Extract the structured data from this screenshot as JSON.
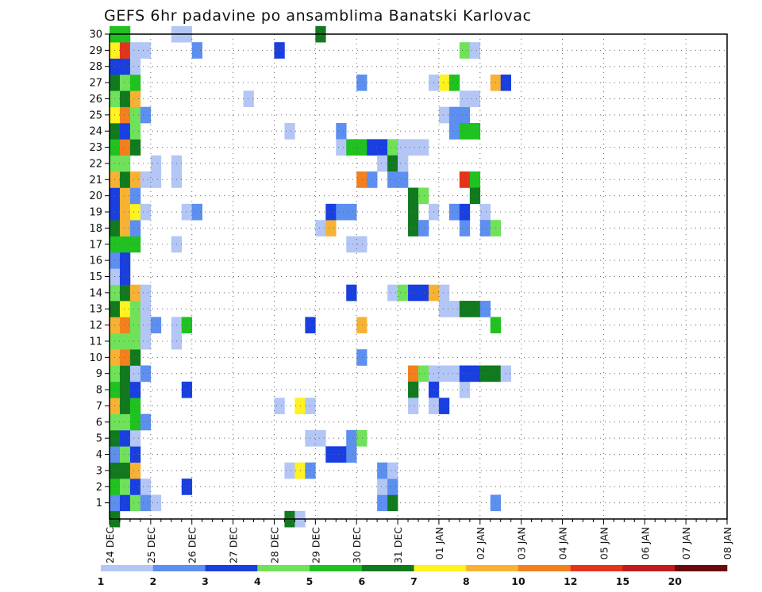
{
  "chart_data": {
    "type": "heatmap",
    "title": "GEFS 6hr padavine po ansamblima Banatski Karlovac",
    "xlabel": "",
    "ylabel": "",
    "x_ticks": [
      "24 DEC",
      "25 DEC",
      "26 DEC",
      "27 DEC",
      "28 DEC",
      "29 DEC",
      "30 DEC",
      "31 DEC",
      "01 JAN",
      "02 JAN",
      "03 JAN",
      "04 JAN",
      "05 JAN",
      "06 JAN",
      "07 JAN",
      "08 JAN"
    ],
    "y_ticks": [
      "1",
      "2",
      "3",
      "4",
      "5",
      "6",
      "7",
      "8",
      "9",
      "10",
      "11",
      "12",
      "13",
      "14",
      "15",
      "16",
      "17",
      "18",
      "19",
      "20",
      "21",
      "22",
      "23",
      "24",
      "25",
      "26",
      "27",
      "28",
      "29",
      "30"
    ],
    "x_range_steps": [
      0,
      60
    ],
    "y_range": [
      0,
      30
    ],
    "grid": true,
    "legend": {
      "placement": "bottom",
      "labels": [
        "1",
        "2",
        "3",
        "4",
        "5",
        "6",
        "7",
        "8",
        "10",
        "12",
        "15",
        "20"
      ],
      "colors": [
        "#b3c6f5",
        "#5c8ff0",
        "#1a3fe0",
        "#6fe25a",
        "#1fc21f",
        "#117a1e",
        "#fff21e",
        "#f8b233",
        "#f37f1d",
        "#e5331a",
        "#c21b1b",
        "#6a0a0a"
      ]
    },
    "cells": [
      {
        "s": 0,
        "m": 0,
        "c": 6
      },
      {
        "s": 0,
        "m": 1,
        "c": 2
      },
      {
        "s": 1,
        "m": 1,
        "c": 3
      },
      {
        "s": 2,
        "m": 1,
        "c": 4
      },
      {
        "s": 3,
        "m": 1,
        "c": 2
      },
      {
        "s": 4,
        "m": 1,
        "c": 1
      },
      {
        "s": 0,
        "m": 2,
        "c": 5
      },
      {
        "s": 1,
        "m": 2,
        "c": 4
      },
      {
        "s": 2,
        "m": 2,
        "c": 3
      },
      {
        "s": 3,
        "m": 2,
        "c": 1
      },
      {
        "s": 0,
        "m": 3,
        "c": 6
      },
      {
        "s": 1,
        "m": 3,
        "c": 6
      },
      {
        "s": 2,
        "m": 3,
        "c": 8
      },
      {
        "s": 0,
        "m": 4,
        "c": 2
      },
      {
        "s": 1,
        "m": 4,
        "c": 4
      },
      {
        "s": 2,
        "m": 4,
        "c": 3
      },
      {
        "s": 0,
        "m": 5,
        "c": 6
      },
      {
        "s": 1,
        "m": 5,
        "c": 3
      },
      {
        "s": 2,
        "m": 5,
        "c": 1
      },
      {
        "s": 0,
        "m": 6,
        "c": 4
      },
      {
        "s": 1,
        "m": 6,
        "c": 4
      },
      {
        "s": 2,
        "m": 6,
        "c": 5
      },
      {
        "s": 3,
        "m": 6,
        "c": 2
      },
      {
        "s": 0,
        "m": 7,
        "c": 8
      },
      {
        "s": 1,
        "m": 7,
        "c": 6
      },
      {
        "s": 2,
        "m": 7,
        "c": 5
      },
      {
        "s": 0,
        "m": 8,
        "c": 5
      },
      {
        "s": 1,
        "m": 8,
        "c": 6
      },
      {
        "s": 2,
        "m": 8,
        "c": 3
      },
      {
        "s": 0,
        "m": 9,
        "c": 4
      },
      {
        "s": 1,
        "m": 9,
        "c": 6
      },
      {
        "s": 2,
        "m": 9,
        "c": 1
      },
      {
        "s": 3,
        "m": 9,
        "c": 2
      },
      {
        "s": 0,
        "m": 10,
        "c": 8
      },
      {
        "s": 1,
        "m": 10,
        "c": 9
      },
      {
        "s": 2,
        "m": 10,
        "c": 6
      },
      {
        "s": 0,
        "m": 11,
        "c": 4
      },
      {
        "s": 1,
        "m": 11,
        "c": 4
      },
      {
        "s": 2,
        "m": 11,
        "c": 4
      },
      {
        "s": 3,
        "m": 11,
        "c": 1
      },
      {
        "s": 0,
        "m": 12,
        "c": 8
      },
      {
        "s": 1,
        "m": 12,
        "c": 9
      },
      {
        "s": 2,
        "m": 12,
        "c": 4
      },
      {
        "s": 3,
        "m": 12,
        "c": 1
      },
      {
        "s": 4,
        "m": 12,
        "c": 2
      },
      {
        "s": 0,
        "m": 13,
        "c": 6
      },
      {
        "s": 1,
        "m": 13,
        "c": 7
      },
      {
        "s": 2,
        "m": 13,
        "c": 4
      },
      {
        "s": 3,
        "m": 13,
        "c": 1
      },
      {
        "s": 0,
        "m": 14,
        "c": 4
      },
      {
        "s": 1,
        "m": 14,
        "c": 6
      },
      {
        "s": 2,
        "m": 14,
        "c": 8
      },
      {
        "s": 3,
        "m": 14,
        "c": 1
      },
      {
        "s": 0,
        "m": 15,
        "c": 1
      },
      {
        "s": 1,
        "m": 15,
        "c": 3
      },
      {
        "s": 0,
        "m": 16,
        "c": 2
      },
      {
        "s": 1,
        "m": 16,
        "c": 3
      },
      {
        "s": 0,
        "m": 17,
        "c": 5
      },
      {
        "s": 1,
        "m": 17,
        "c": 5
      },
      {
        "s": 2,
        "m": 17,
        "c": 5
      },
      {
        "s": 0,
        "m": 18,
        "c": 6
      },
      {
        "s": 1,
        "m": 18,
        "c": 8
      },
      {
        "s": 2,
        "m": 18,
        "c": 2
      },
      {
        "s": 0,
        "m": 19,
        "c": 3
      },
      {
        "s": 1,
        "m": 19,
        "c": 8
      },
      {
        "s": 2,
        "m": 19,
        "c": 7
      },
      {
        "s": 3,
        "m": 19,
        "c": 1
      },
      {
        "s": 0,
        "m": 20,
        "c": 3
      },
      {
        "s": 1,
        "m": 20,
        "c": 8
      },
      {
        "s": 2,
        "m": 20,
        "c": 2
      },
      {
        "s": 0,
        "m": 21,
        "c": 8
      },
      {
        "s": 1,
        "m": 21,
        "c": 6
      },
      {
        "s": 2,
        "m": 21,
        "c": 8
      },
      {
        "s": 3,
        "m": 21,
        "c": 1
      },
      {
        "s": 4,
        "m": 21,
        "c": 1
      },
      {
        "s": 0,
        "m": 22,
        "c": 4
      },
      {
        "s": 1,
        "m": 22,
        "c": 4
      },
      {
        "s": 4,
        "m": 22,
        "c": 1
      },
      {
        "s": 0,
        "m": 23,
        "c": 5
      },
      {
        "s": 1,
        "m": 23,
        "c": 9
      },
      {
        "s": 2,
        "m": 23,
        "c": 6
      },
      {
        "s": 0,
        "m": 24,
        "c": 6
      },
      {
        "s": 1,
        "m": 24,
        "c": 3
      },
      {
        "s": 2,
        "m": 24,
        "c": 4
      },
      {
        "s": 0,
        "m": 25,
        "c": 7
      },
      {
        "s": 1,
        "m": 25,
        "c": 9
      },
      {
        "s": 2,
        "m": 25,
        "c": 4
      },
      {
        "s": 3,
        "m": 25,
        "c": 2
      },
      {
        "s": 0,
        "m": 26,
        "c": 4
      },
      {
        "s": 1,
        "m": 26,
        "c": 6
      },
      {
        "s": 2,
        "m": 26,
        "c": 8
      },
      {
        "s": 0,
        "m": 27,
        "c": 6
      },
      {
        "s": 1,
        "m": 27,
        "c": 4
      },
      {
        "s": 2,
        "m": 27,
        "c": 5
      },
      {
        "s": 0,
        "m": 28,
        "c": 3
      },
      {
        "s": 1,
        "m": 28,
        "c": 3
      },
      {
        "s": 2,
        "m": 28,
        "c": 1
      },
      {
        "s": 0,
        "m": 29,
        "c": 7
      },
      {
        "s": 1,
        "m": 29,
        "c": 10
      },
      {
        "s": 2,
        "m": 29,
        "c": 1
      },
      {
        "s": 3,
        "m": 29,
        "c": 1
      },
      {
        "s": 0,
        "m": 30,
        "c": 5
      },
      {
        "s": 1,
        "m": 30,
        "c": 5
      },
      {
        "s": 6,
        "m": 30,
        "c": 1
      },
      {
        "s": 7,
        "m": 30,
        "c": 1
      },
      {
        "s": 6,
        "m": 21,
        "c": 1
      },
      {
        "s": 6,
        "m": 22,
        "c": 1
      },
      {
        "s": 6,
        "m": 17,
        "c": 1
      },
      {
        "s": 6,
        "m": 12,
        "c": 1
      },
      {
        "s": 7,
        "m": 12,
        "c": 5
      },
      {
        "s": 6,
        "m": 11,
        "c": 1
      },
      {
        "s": 7,
        "m": 19,
        "c": 1
      },
      {
        "s": 8,
        "m": 19,
        "c": 2
      },
      {
        "s": 8,
        "m": 29,
        "c": 2
      },
      {
        "s": 7,
        "m": 8,
        "c": 3
      },
      {
        "s": 7,
        "m": 2,
        "c": 3
      },
      {
        "s": 13,
        "m": 26,
        "c": 1
      },
      {
        "s": 16,
        "m": 29,
        "c": 3
      },
      {
        "s": 16,
        "m": 7,
        "c": 1
      },
      {
        "s": 17,
        "m": 24,
        "c": 1
      },
      {
        "s": 17,
        "m": 0,
        "c": 6
      },
      {
        "s": 18,
        "m": 0,
        "c": 1
      },
      {
        "s": 17,
        "m": 3,
        "c": 1
      },
      {
        "s": 18,
        "m": 3,
        "c": 7
      },
      {
        "s": 19,
        "m": 3,
        "c": 2
      },
      {
        "s": 18,
        "m": 7,
        "c": 7
      },
      {
        "s": 19,
        "m": 7,
        "c": 1
      },
      {
        "s": 19,
        "m": 5,
        "c": 1
      },
      {
        "s": 20,
        "m": 5,
        "c": 1
      },
      {
        "s": 19,
        "m": 12,
        "c": 3
      },
      {
        "s": 20,
        "m": 30,
        "c": 6
      },
      {
        "s": 20,
        "m": 18,
        "c": 1
      },
      {
        "s": 21,
        "m": 18,
        "c": 8
      },
      {
        "s": 21,
        "m": 19,
        "c": 3
      },
      {
        "s": 22,
        "m": 19,
        "c": 2
      },
      {
        "s": 23,
        "m": 19,
        "c": 2
      },
      {
        "s": 21,
        "m": 4,
        "c": 3
      },
      {
        "s": 22,
        "m": 4,
        "c": 3
      },
      {
        "s": 23,
        "m": 4,
        "c": 2
      },
      {
        "s": 23,
        "m": 5,
        "c": 2
      },
      {
        "s": 24,
        "m": 5,
        "c": 4
      },
      {
        "s": 23,
        "m": 14,
        "c": 3
      },
      {
        "s": 22,
        "m": 24,
        "c": 2
      },
      {
        "s": 22,
        "m": 23,
        "c": 1
      },
      {
        "s": 23,
        "m": 23,
        "c": 5
      },
      {
        "s": 24,
        "m": 23,
        "c": 5
      },
      {
        "s": 25,
        "m": 23,
        "c": 3
      },
      {
        "s": 26,
        "m": 23,
        "c": 3
      },
      {
        "s": 27,
        "m": 23,
        "c": 4
      },
      {
        "s": 28,
        "m": 23,
        "c": 1
      },
      {
        "s": 29,
        "m": 23,
        "c": 1
      },
      {
        "s": 30,
        "m": 23,
        "c": 1
      },
      {
        "s": 23,
        "m": 17,
        "c": 1
      },
      {
        "s": 24,
        "m": 17,
        "c": 1
      },
      {
        "s": 24,
        "m": 27,
        "c": 2
      },
      {
        "s": 24,
        "m": 21,
        "c": 9
      },
      {
        "s": 25,
        "m": 21,
        "c": 2
      },
      {
        "s": 24,
        "m": 12,
        "c": 8
      },
      {
        "s": 24,
        "m": 10,
        "c": 2
      },
      {
        "s": 26,
        "m": 22,
        "c": 1
      },
      {
        "s": 27,
        "m": 22,
        "c": 6
      },
      {
        "s": 26,
        "m": 1,
        "c": 2
      },
      {
        "s": 27,
        "m": 1,
        "c": 6
      },
      {
        "s": 26,
        "m": 2,
        "c": 1
      },
      {
        "s": 27,
        "m": 2,
        "c": 2
      },
      {
        "s": 26,
        "m": 3,
        "c": 2
      },
      {
        "s": 27,
        "m": 3,
        "c": 1
      },
      {
        "s": 27,
        "m": 21,
        "c": 2
      },
      {
        "s": 28,
        "m": 21,
        "c": 2
      },
      {
        "s": 28,
        "m": 22,
        "c": 1
      },
      {
        "s": 27,
        "m": 14,
        "c": 1
      },
      {
        "s": 28,
        "m": 14,
        "c": 4
      },
      {
        "s": 29,
        "m": 14,
        "c": 3
      },
      {
        "s": 30,
        "m": 14,
        "c": 3
      },
      {
        "s": 31,
        "m": 14,
        "c": 8
      },
      {
        "s": 32,
        "m": 14,
        "c": 1
      },
      {
        "s": 29,
        "m": 20,
        "c": 6
      },
      {
        "s": 30,
        "m": 20,
        "c": 4
      },
      {
        "s": 29,
        "m": 19,
        "c": 6
      },
      {
        "s": 31,
        "m": 19,
        "c": 1
      },
      {
        "s": 33,
        "m": 19,
        "c": 2
      },
      {
        "s": 29,
        "m": 18,
        "c": 6
      },
      {
        "s": 30,
        "m": 18,
        "c": 2
      },
      {
        "s": 29,
        "m": 9,
        "c": 9
      },
      {
        "s": 30,
        "m": 9,
        "c": 4
      },
      {
        "s": 31,
        "m": 9,
        "c": 1
      },
      {
        "s": 32,
        "m": 9,
        "c": 1
      },
      {
        "s": 29,
        "m": 8,
        "c": 6
      },
      {
        "s": 31,
        "m": 8,
        "c": 3
      },
      {
        "s": 29,
        "m": 7,
        "c": 1
      },
      {
        "s": 31,
        "m": 7,
        "c": 1
      },
      {
        "s": 32,
        "m": 7,
        "c": 3
      },
      {
        "s": 31,
        "m": 27,
        "c": 1
      },
      {
        "s": 32,
        "m": 27,
        "c": 7
      },
      {
        "s": 33,
        "m": 27,
        "c": 5
      },
      {
        "s": 32,
        "m": 25,
        "c": 1
      },
      {
        "s": 33,
        "m": 25,
        "c": 2
      },
      {
        "s": 34,
        "m": 25,
        "c": 2
      },
      {
        "s": 33,
        "m": 24,
        "c": 2
      },
      {
        "s": 32,
        "m": 13,
        "c": 1
      },
      {
        "s": 33,
        "m": 13,
        "c": 1
      },
      {
        "s": 34,
        "m": 13,
        "c": 6
      },
      {
        "s": 35,
        "m": 13,
        "c": 6
      },
      {
        "s": 36,
        "m": 13,
        "c": 2
      },
      {
        "s": 34,
        "m": 29,
        "c": 4
      },
      {
        "s": 35,
        "m": 29,
        "c": 1
      },
      {
        "s": 34,
        "m": 26,
        "c": 1
      },
      {
        "s": 35,
        "m": 26,
        "c": 1
      },
      {
        "s": 34,
        "m": 24,
        "c": 5
      },
      {
        "s": 35,
        "m": 24,
        "c": 5
      },
      {
        "s": 34,
        "m": 21,
        "c": 10
      },
      {
        "s": 35,
        "m": 21,
        "c": 5
      },
      {
        "s": 35,
        "m": 20,
        "c": 6
      },
      {
        "s": 34,
        "m": 18,
        "c": 2
      },
      {
        "s": 34,
        "m": 19,
        "c": 3
      },
      {
        "s": 34,
        "m": 8,
        "c": 1
      },
      {
        "s": 33,
        "m": 9,
        "c": 1
      },
      {
        "s": 34,
        "m": 9,
        "c": 3
      },
      {
        "s": 35,
        "m": 9,
        "c": 3
      },
      {
        "s": 36,
        "m": 9,
        "c": 6
      },
      {
        "s": 37,
        "m": 9,
        "c": 6
      },
      {
        "s": 38,
        "m": 9,
        "c": 1
      },
      {
        "s": 36,
        "m": 19,
        "c": 1
      },
      {
        "s": 36,
        "m": 18,
        "c": 2
      },
      {
        "s": 37,
        "m": 18,
        "c": 4
      },
      {
        "s": 37,
        "m": 27,
        "c": 8
      },
      {
        "s": 38,
        "m": 27,
        "c": 3
      },
      {
        "s": 37,
        "m": 12,
        "c": 5
      },
      {
        "s": 37,
        "m": 1,
        "c": 2
      }
    ]
  }
}
